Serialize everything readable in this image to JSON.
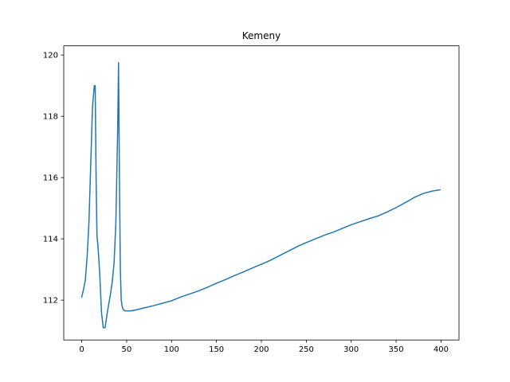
{
  "chart_data": {
    "type": "line",
    "title": "Kemeny",
    "xlabel": "",
    "ylabel": "",
    "xlim": [
      -20,
      420
    ],
    "ylim": [
      110.7,
      120.3
    ],
    "xticks": [
      0,
      50,
      100,
      150,
      200,
      250,
      300,
      350,
      400
    ],
    "yticks": [
      112,
      114,
      116,
      118,
      120
    ],
    "grid": false,
    "legend": "none",
    "colors": {
      "series": "#1f77b4",
      "axes": "#000000",
      "background": "#ffffff"
    },
    "series": [
      {
        "color": "#1f77b4",
        "x": [
          0,
          2,
          4,
          6,
          8,
          10,
          12,
          14,
          15,
          16,
          17,
          18,
          20,
          22,
          24,
          26,
          28,
          30,
          32,
          34,
          36,
          38,
          40,
          41,
          42,
          43,
          44,
          45,
          46,
          48,
          50,
          55,
          60,
          70,
          80,
          90,
          100,
          110,
          120,
          130,
          140,
          150,
          160,
          170,
          180,
          190,
          200,
          210,
          220,
          230,
          240,
          250,
          260,
          270,
          280,
          290,
          300,
          310,
          320,
          330,
          340,
          350,
          360,
          365,
          370,
          380,
          390,
          399
        ],
        "y": [
          112.1,
          112.35,
          112.65,
          113.4,
          114.5,
          116.4,
          118.3,
          119.0,
          119.0,
          116.0,
          114.1,
          113.8,
          112.9,
          111.6,
          111.1,
          111.1,
          111.5,
          111.85,
          112.2,
          112.6,
          113.2,
          114.5,
          117.5,
          119.75,
          116.0,
          113.0,
          112.0,
          111.8,
          111.7,
          111.65,
          111.65,
          111.65,
          111.68,
          111.75,
          111.82,
          111.9,
          111.98,
          112.1,
          112.2,
          112.3,
          112.42,
          112.55,
          112.67,
          112.8,
          112.92,
          113.05,
          113.17,
          113.3,
          113.45,
          113.6,
          113.75,
          113.88,
          114.0,
          114.12,
          114.22,
          114.34,
          114.46,
          114.56,
          114.66,
          114.75,
          114.88,
          115.02,
          115.18,
          115.26,
          115.35,
          115.48,
          115.56,
          115.6
        ]
      }
    ]
  }
}
